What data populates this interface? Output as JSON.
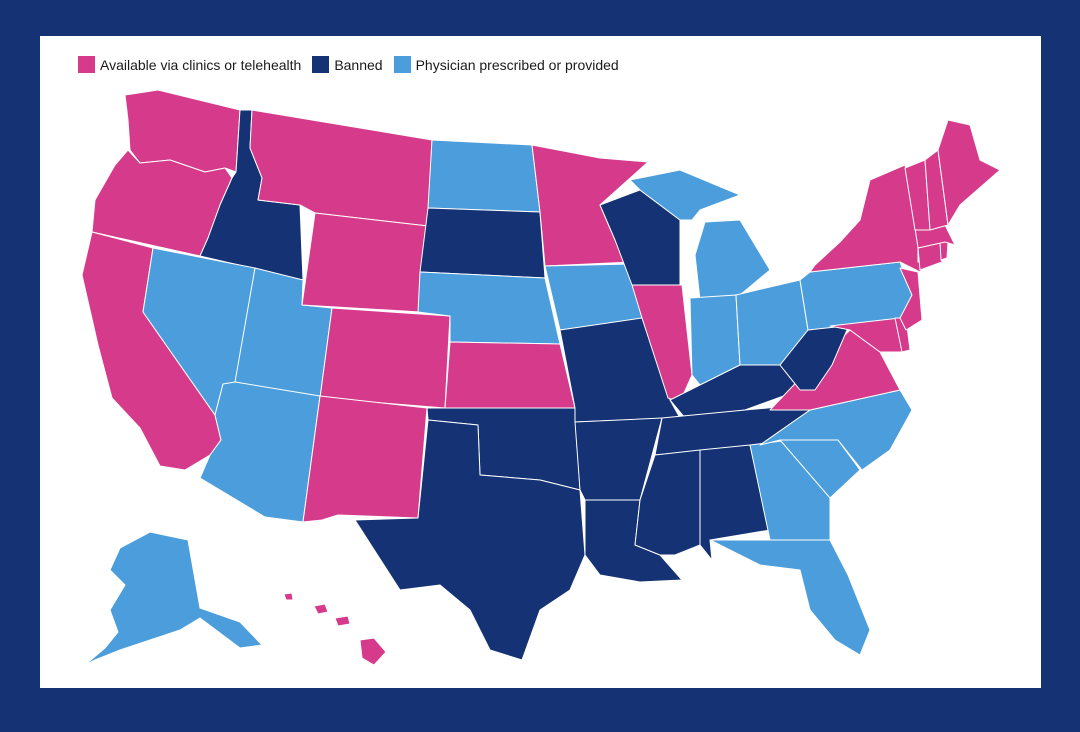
{
  "legend": [
    {
      "label": "Available via clinics or telehealth",
      "category": "available"
    },
    {
      "label": "Banned",
      "category": "banned"
    },
    {
      "label": "Physician prescribed or provided",
      "category": "physician"
    }
  ],
  "colors": {
    "available": "#d63a8b",
    "banned": "#143274",
    "physician": "#4b9ddb",
    "frame": "#143274"
  },
  "states": {
    "WA": "available",
    "OR": "available",
    "CA": "available",
    "ID": "banned",
    "NV": "physician",
    "UT": "physician",
    "AZ": "physician",
    "MT": "available",
    "WY": "available",
    "CO": "available",
    "NM": "available",
    "ND": "physician",
    "SD": "banned",
    "NE": "physician",
    "KS": "available",
    "OK": "banned",
    "TX": "banned",
    "MN": "available",
    "IA": "physician",
    "MO": "banned",
    "AR": "banned",
    "LA": "banned",
    "WI": "banned",
    "IL": "available",
    "MI": "physician",
    "IN": "physician",
    "OH": "physician",
    "KY": "banned",
    "TN": "banned",
    "MS": "banned",
    "AL": "banned",
    "GA": "physician",
    "FL": "physician",
    "SC": "physician",
    "NC": "physician",
    "VA": "available",
    "WV": "banned",
    "PA": "physician",
    "NY": "available",
    "VT": "available",
    "NH": "available",
    "ME": "available",
    "MA": "available",
    "RI": "available",
    "CT": "available",
    "NJ": "available",
    "DE": "available",
    "MD": "available",
    "AK": "physician",
    "HI": "available"
  }
}
